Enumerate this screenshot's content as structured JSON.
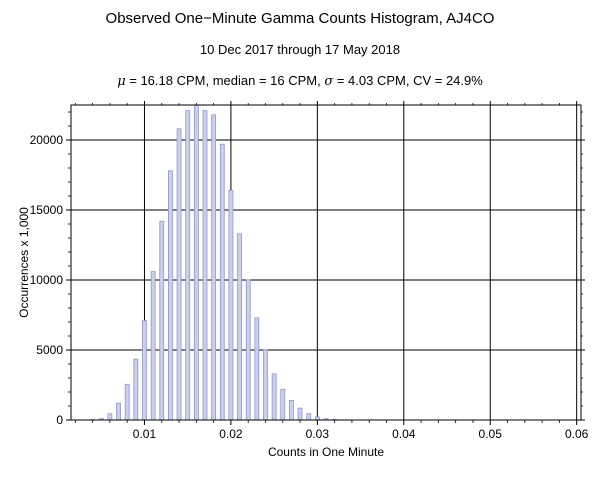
{
  "chart_data": {
    "type": "bar",
    "title": "Observed One−Minute Gamma Counts Histogram, AJ4CO",
    "subtitle": "10 Dec 2017 through 17 May 2018",
    "stats": {
      "mu_symbol": "μ",
      "mu_text": " = 16.18 CPM,   median = 16 CPM,   ",
      "sigma_symbol": "σ",
      "sigma_text": " = 4.03 CPM,   CV = 24.9%"
    },
    "xlabel": "Counts in One Minute",
    "ylabel": "Occurrences x 1,000",
    "xlim": [
      0.0015,
      0.0605
    ],
    "ylim": [
      0,
      22500
    ],
    "x_ticks": [
      0.01,
      0.02,
      0.03,
      0.04,
      0.05,
      0.06
    ],
    "x_tick_labels": [
      "0.01",
      "0.02",
      "0.03",
      "0.04",
      "0.05",
      "0.06"
    ],
    "y_ticks": [
      0,
      5000,
      10000,
      15000,
      20000
    ],
    "y_tick_labels": [
      "0",
      "5000",
      "10000",
      "15000",
      "20000"
    ],
    "grid": true,
    "bar_color": "#c9d0ee",
    "bar_edge_color": "#8f98cc",
    "bins": [
      0.004,
      0.005,
      0.006,
      0.007,
      0.008,
      0.009,
      0.01,
      0.011,
      0.012,
      0.013,
      0.014,
      0.015,
      0.016,
      0.017,
      0.018,
      0.019,
      0.02,
      0.021,
      0.022,
      0.023,
      0.024,
      0.025,
      0.026,
      0.027,
      0.028,
      0.029,
      0.03,
      0.031,
      0.032
    ],
    "values": [
      30,
      100,
      450,
      1200,
      2550,
      4350,
      7100,
      10600,
      14200,
      17800,
      20800,
      22100,
      22500,
      22100,
      21800,
      19700,
      16400,
      13300,
      10000,
      7300,
      5000,
      3300,
      2200,
      1400,
      850,
      450,
      220,
      100,
      40
    ]
  }
}
